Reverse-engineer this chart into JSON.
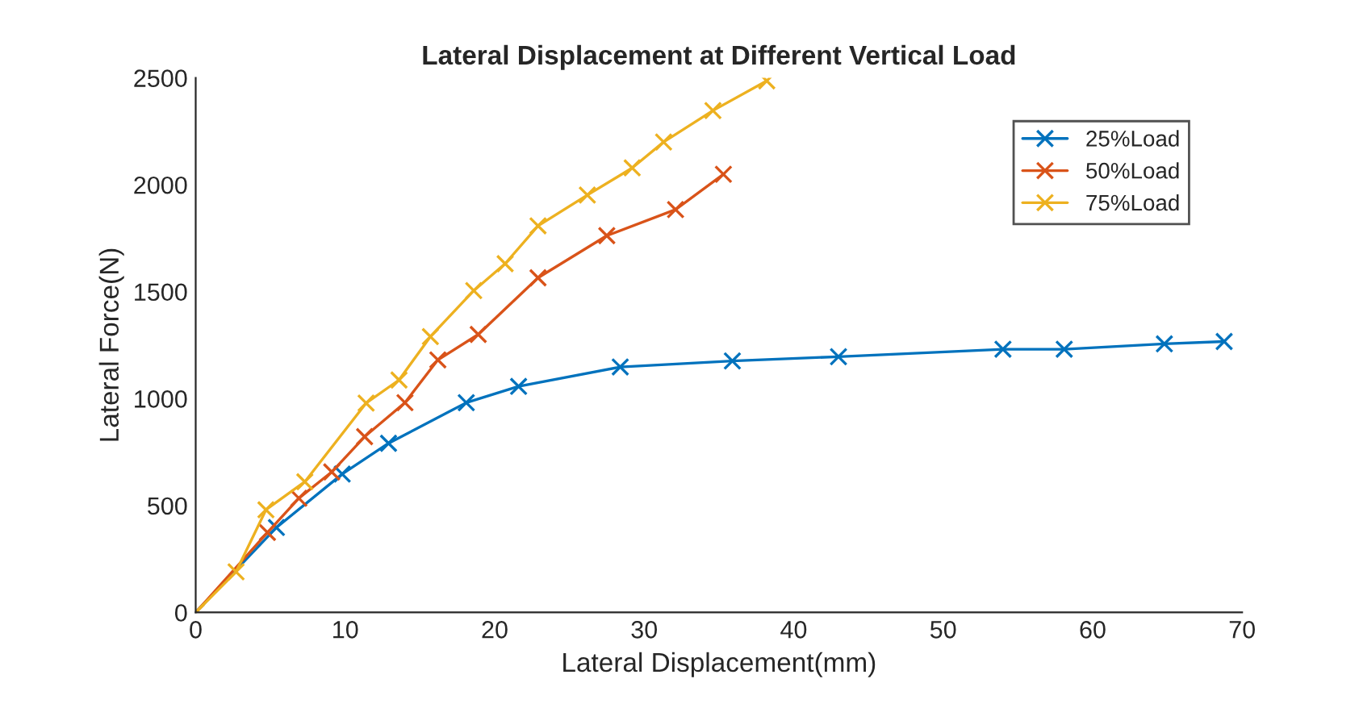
{
  "chart_data": {
    "type": "line",
    "title": "Lateral Displacement at Different Vertical Load",
    "xlabel": "Lateral Displacement(mm)",
    "ylabel": "Lateral Force(N)",
    "xlim": [
      0,
      70
    ],
    "xticks": [
      0,
      10,
      20,
      30,
      40,
      50,
      60,
      70
    ],
    "ylim": [
      0,
      2500
    ],
    "yticks": [
      0,
      500,
      1000,
      1500,
      2000,
      2500
    ],
    "grid": false,
    "legend": "top right",
    "marker": "cross",
    "line_style": "solid",
    "series": [
      {
        "name": "25%Load",
        "color": "#0072bd",
        "x": [
          0,
          5.4,
          9.8,
          12.9,
          18.1,
          21.6,
          28.4,
          35.9,
          43.0,
          54.0,
          58.1,
          64.8,
          68.8
        ],
        "values": [
          0,
          397,
          647,
          791,
          981,
          1057,
          1148,
          1176,
          1196,
          1231,
          1231,
          1256,
          1267
        ]
      },
      {
        "name": "50%Load",
        "color": "#d95319",
        "x": [
          0,
          4.8,
          6.9,
          9.1,
          11.3,
          14.0,
          16.2,
          18.9,
          22.9,
          27.5,
          32.1,
          35.3
        ],
        "values": [
          0,
          374,
          534,
          657,
          822,
          981,
          1181,
          1300,
          1565,
          1762,
          1884,
          2049
        ]
      },
      {
        "name": "75%Load",
        "color": "#edb120",
        "x": [
          0,
          2.7,
          4.7,
          7.3,
          11.4,
          13.6,
          15.7,
          18.6,
          20.7,
          22.9,
          26.2,
          29.2,
          31.3,
          34.6,
          38.2
        ],
        "values": [
          0,
          190,
          480,
          611,
          979,
          1087,
          1290,
          1505,
          1631,
          1808,
          1952,
          2079,
          2200,
          2347,
          2486
        ]
      }
    ]
  }
}
